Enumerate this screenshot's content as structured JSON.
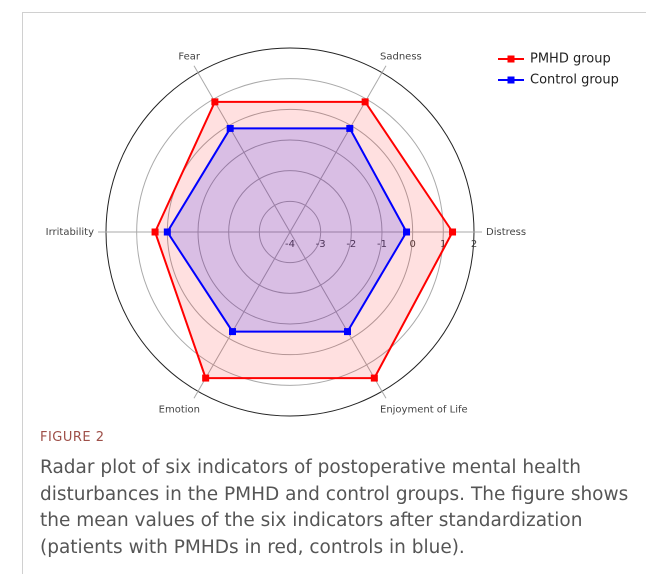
{
  "chart_data": {
    "type": "radar",
    "categories": [
      "Distress",
      "Sadness",
      "Fear",
      "Irritability",
      "Emotion",
      "Enjoyment of Life"
    ],
    "series": [
      {
        "name": "PMHD group",
        "color": "#ff0000",
        "values": [
          1.3,
          0.9,
          0.9,
          0.4,
          1.5,
          1.5
        ]
      },
      {
        "name": "Control group",
        "color": "#0000ff",
        "values": [
          -0.2,
          -0.1,
          -0.1,
          0,
          -0.25,
          -0.25
        ]
      }
    ],
    "rlim": [
      -4,
      2
    ],
    "rticks": [
      -4,
      -3,
      -2,
      -1,
      0,
      1,
      2
    ],
    "grid": true,
    "legend": "top-right"
  },
  "caption": {
    "label": "FIGURE 2",
    "text": "Radar plot of six indicators of postoperative mental health disturbances in the PMHD and control groups. The figure shows the mean values of the six indicators after standardization (patients with PMHDs in red, controls in blue)."
  }
}
